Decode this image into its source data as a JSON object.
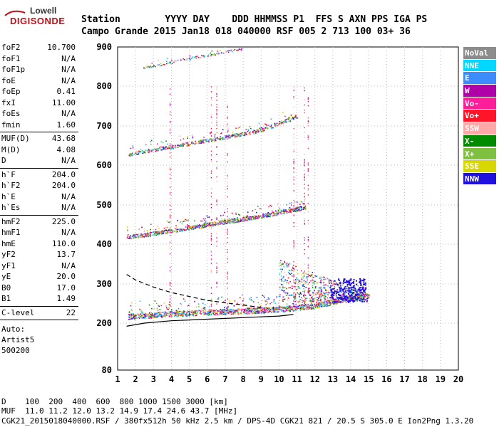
{
  "logo": {
    "line1": "Lowell",
    "line2": "DIGISONDE"
  },
  "header": {
    "row1": "Station        YYYY DAY    DDD HHMMSS P1  FFS S AXN PPS IGA PS",
    "row2": "Campo Grande 2015 Jan18 018 040000 RSF 005 2 713 100 03+ 36"
  },
  "params": [
    {
      "k": "foF2",
      "v": "10.700"
    },
    {
      "k": "foF1",
      "v": "N/A"
    },
    {
      "k": "foF1p",
      "v": "N/A"
    },
    {
      "k": "foE",
      "v": "N/A"
    },
    {
      "k": "foEp",
      "v": "0.41"
    },
    {
      "k": "fxI",
      "v": "11.00"
    },
    {
      "k": "foEs",
      "v": "N/A"
    },
    {
      "k": "fmin",
      "v": "1.60"
    },
    {
      "k": "MUF(D)",
      "v": "43.68"
    },
    {
      "k": "M(D)",
      "v": "4.08"
    },
    {
      "k": "D",
      "v": "N/A"
    },
    {
      "k": "h`F",
      "v": "204.0"
    },
    {
      "k": "h`F2",
      "v": "204.0"
    },
    {
      "k": "h`E",
      "v": "N/A"
    },
    {
      "k": "h`Es",
      "v": "N/A"
    },
    {
      "k": "hmF2",
      "v": "225.0"
    },
    {
      "k": "hmF1",
      "v": "N/A"
    },
    {
      "k": "hmE",
      "v": "110.0"
    },
    {
      "k": "yF2",
      "v": "13.7"
    },
    {
      "k": "yF1",
      "v": "N/A"
    },
    {
      "k": "yE",
      "v": "20.0"
    },
    {
      "k": "B0",
      "v": "17.0"
    },
    {
      "k": "B1",
      "v": "1.49"
    },
    {
      "k": "C-level",
      "v": "22"
    }
  ],
  "notes": [
    "Auto:",
    "Artist5",
    "500200"
  ],
  "legend": [
    {
      "label": "NoVal",
      "color": "#8c8c8c"
    },
    {
      "label": "NNE",
      "color": "#00d8ff"
    },
    {
      "label": "E",
      "color": "#3c8cff"
    },
    {
      "label": "W",
      "color": "#b000a8"
    },
    {
      "label": "Vo-",
      "color": "#ff1e9a"
    },
    {
      "label": "Vo+",
      "color": "#ff1428"
    },
    {
      "label": "SSW",
      "color": "#ffa8a8"
    },
    {
      "label": "X-",
      "color": "#008a00"
    },
    {
      "label": "X+",
      "color": "#80c040"
    },
    {
      "label": "SSE",
      "color": "#d8d800"
    },
    {
      "label": "NNW",
      "color": "#2010e0"
    }
  ],
  "chart_data": {
    "type": "scatter",
    "title": "",
    "xlabel": "",
    "ylabel": "",
    "xlim": [
      1,
      20
    ],
    "ylim": [
      80,
      900
    ],
    "x_ticks": [
      "1",
      "2",
      "3",
      "4",
      "5",
      "6",
      "7",
      "8",
      "9",
      "10",
      "11",
      "12",
      "13",
      "14",
      "15",
      "16",
      "17",
      "18",
      "19",
      "20"
    ],
    "y_ticks": [
      "80",
      "200",
      "300",
      "400",
      "500",
      "600",
      "700",
      "800",
      "900"
    ],
    "y_tick_values": [
      80,
      200,
      300,
      400,
      500,
      600,
      700,
      800,
      900
    ],
    "grid": true,
    "traces": [
      {
        "name": "1-hop F2",
        "x": [
          1.6,
          4,
          6,
          8,
          10,
          11,
          12,
          13,
          14,
          14.8
        ],
        "y": [
          218,
          224,
          228,
          232,
          236,
          240,
          245,
          255,
          265,
          272
        ]
      },
      {
        "name": "2-hop F2",
        "x": [
          1.5,
          3,
          5,
          7,
          9,
          10.5,
          11.5
        ],
        "y": [
          418,
          428,
          442,
          458,
          472,
          486,
          495
        ]
      },
      {
        "name": "3-hop F2",
        "x": [
          1.6,
          3,
          5,
          7,
          9,
          11
        ],
        "y": [
          628,
          640,
          656,
          672,
          690,
          725
        ]
      },
      {
        "name": "4-hop F2",
        "x": [
          2.4,
          4,
          6,
          8
        ],
        "y": [
          848,
          862,
          880,
          898
        ]
      }
    ],
    "profile_solid": {
      "x": [
        1.5,
        2.5,
        4,
        6,
        8,
        10,
        10.8
      ],
      "y": [
        192,
        200,
        206,
        210,
        214,
        218,
        222
      ]
    },
    "profile_dashed": {
      "x": [
        1.5,
        2,
        3,
        4,
        5,
        6,
        7,
        8,
        9
      ],
      "y": [
        324,
        310,
        292,
        278,
        268,
        258,
        252,
        246,
        240
      ]
    },
    "footer": {
      "D_label": "D",
      "D": [
        "100",
        "200",
        "400",
        "600",
        "800",
        "1000",
        "1500",
        "3000"
      ],
      "D_unit": "[km]",
      "MUF_label": "MUF",
      "MUF": [
        "11.0",
        "11.2",
        "12.0",
        "13.2",
        "14.9",
        "17.4",
        "24.6",
        "43.7"
      ],
      "MUF_unit": "[MHz]"
    }
  },
  "footer_line": "CGK21_2015018040000.RSF / 380fx512h 50 kHz 2.5 km / DPS-4D CGK21 821 / 20.5 S 305.0 E Ion2Png 1.3.20"
}
